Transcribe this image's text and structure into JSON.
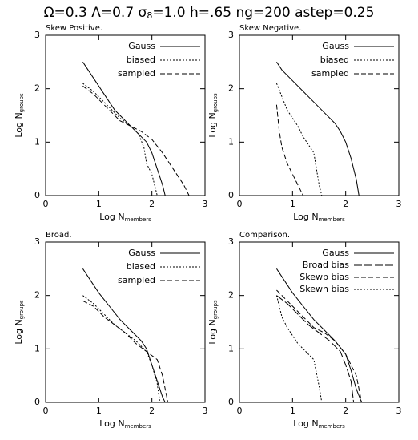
{
  "title": [
    "Ω=0.3 Λ=0.7 σ",
    "8",
    "=1.0 h=.65 ng=200 astep=0.25"
  ],
  "chart_data": [
    {
      "type": "line",
      "title": "Skew Positive.",
      "xlabel": "Log N",
      "xlabel_subscript": "members",
      "ylabel": "Log N",
      "ylabel_subscript": "groups",
      "xlim": [
        0,
        3
      ],
      "ylim": [
        0,
        3
      ],
      "xticks": [
        0,
        1,
        2,
        3
      ],
      "yticks": [
        0,
        1,
        2,
        3
      ],
      "legend": "upper right",
      "series": [
        {
          "name": "Gauss",
          "color": "#000000",
          "dash": "solid",
          "x": [
            0.7,
            0.8,
            0.9,
            1.0,
            1.1,
            1.2,
            1.3,
            1.4,
            1.5,
            1.6,
            1.7,
            1.8,
            1.9,
            2.0,
            2.1,
            2.2,
            2.25
          ],
          "values": [
            2.5,
            2.35,
            2.2,
            2.05,
            1.9,
            1.75,
            1.6,
            1.5,
            1.4,
            1.3,
            1.2,
            1.1,
            1.0,
            0.8,
            0.5,
            0.2,
            0
          ]
        },
        {
          "name": "biased",
          "color": "#000000",
          "dash": "dotted",
          "x": [
            0.7,
            0.9,
            1.0,
            1.2,
            1.4,
            1.6,
            1.75,
            1.85,
            1.9,
            2.0,
            2.05,
            2.1
          ],
          "values": [
            2.1,
            1.95,
            1.85,
            1.65,
            1.45,
            1.3,
            1.15,
            0.9,
            0.6,
            0.4,
            0.2,
            0
          ]
        },
        {
          "name": "sampled",
          "color": "#000000",
          "dash": "dashed",
          "x": [
            0.7,
            0.9,
            1.0,
            1.2,
            1.4,
            1.6,
            1.8,
            2.0,
            2.2,
            2.4,
            2.6,
            2.7
          ],
          "values": [
            2.05,
            1.9,
            1.8,
            1.6,
            1.4,
            1.3,
            1.2,
            1.05,
            0.8,
            0.5,
            0.2,
            0
          ]
        }
      ]
    },
    {
      "type": "line",
      "title": "Skew Negative.",
      "xlabel": "Log N",
      "xlabel_subscript": "members",
      "ylabel": "Log N",
      "ylabel_subscript": "groups",
      "xlim": [
        0,
        3
      ],
      "ylim": [
        0,
        3
      ],
      "xticks": [
        0,
        1,
        2,
        3
      ],
      "yticks": [
        0,
        1,
        2,
        3
      ],
      "legend": "upper right",
      "series": [
        {
          "name": "Gauss",
          "color": "#000000",
          "dash": "solid",
          "x": [
            0.7,
            0.8,
            1.0,
            1.2,
            1.4,
            1.6,
            1.8,
            1.9,
            2.0,
            2.1,
            2.2,
            2.25
          ],
          "values": [
            2.5,
            2.35,
            2.15,
            1.95,
            1.75,
            1.55,
            1.35,
            1.2,
            1.0,
            0.7,
            0.3,
            0
          ]
        },
        {
          "name": "biased",
          "color": "#000000",
          "dash": "dotted",
          "x": [
            0.7,
            0.8,
            0.9,
            1.0,
            1.1,
            1.2,
            1.3,
            1.4,
            1.45,
            1.5,
            1.55
          ],
          "values": [
            2.1,
            1.85,
            1.6,
            1.45,
            1.3,
            1.1,
            0.95,
            0.8,
            0.5,
            0.2,
            0
          ]
        },
        {
          "name": "sampled",
          "color": "#000000",
          "dash": "dashed",
          "x": [
            0.7,
            0.75,
            0.8,
            0.9,
            1.0,
            1.1,
            1.2
          ],
          "values": [
            1.7,
            1.2,
            0.9,
            0.6,
            0.4,
            0.2,
            0
          ]
        }
      ]
    },
    {
      "type": "line",
      "title": "Broad.",
      "xlabel": "Log N",
      "xlabel_subscript": "members",
      "ylabel": "Log N",
      "ylabel_subscript": "groups",
      "xlim": [
        0,
        3
      ],
      "ylim": [
        0,
        3
      ],
      "xticks": [
        0,
        1,
        2,
        3
      ],
      "yticks": [
        0,
        1,
        2,
        3
      ],
      "legend": "upper right",
      "series": [
        {
          "name": "Gauss",
          "color": "#000000",
          "dash": "solid",
          "x": [
            0.7,
            0.8,
            0.9,
            1.0,
            1.2,
            1.4,
            1.6,
            1.8,
            1.9,
            2.0,
            2.1,
            2.2,
            2.25
          ],
          "values": [
            2.5,
            2.35,
            2.2,
            2.05,
            1.8,
            1.55,
            1.35,
            1.15,
            1.0,
            0.7,
            0.4,
            0.1,
            0
          ]
        },
        {
          "name": "biased",
          "color": "#000000",
          "dash": "dotted",
          "x": [
            0.7,
            0.9,
            1.1,
            1.3,
            1.5,
            1.7,
            1.9,
            2.0,
            2.1,
            2.15
          ],
          "values": [
            2.0,
            1.85,
            1.65,
            1.45,
            1.3,
            1.15,
            0.95,
            0.7,
            0.35,
            0
          ]
        },
        {
          "name": "sampled",
          "color": "#000000",
          "dash": "dashed",
          "x": [
            0.7,
            0.9,
            1.1,
            1.3,
            1.5,
            1.7,
            1.9,
            2.1,
            2.2,
            2.3
          ],
          "values": [
            1.9,
            1.8,
            1.6,
            1.45,
            1.3,
            1.1,
            0.95,
            0.8,
            0.5,
            0
          ]
        }
      ]
    },
    {
      "type": "line",
      "title": "Comparison.",
      "xlabel": "Log N",
      "xlabel_subscript": "members",
      "ylabel": "Log N",
      "ylabel_subscript": "groups",
      "xlim": [
        0,
        3
      ],
      "ylim": [
        0,
        3
      ],
      "xticks": [
        0,
        1,
        2,
        3
      ],
      "yticks": [
        0,
        1,
        2,
        3
      ],
      "legend": "upper right",
      "series": [
        {
          "name": "Gauss",
          "color": "#000000",
          "dash": "solid",
          "x": [
            0.7,
            0.8,
            0.9,
            1.0,
            1.2,
            1.4,
            1.6,
            1.8,
            2.0,
            2.1,
            2.2,
            2.3
          ],
          "values": [
            2.5,
            2.35,
            2.2,
            2.05,
            1.8,
            1.55,
            1.35,
            1.15,
            0.9,
            0.6,
            0.25,
            0
          ]
        },
        {
          "name": "Broad bias",
          "color": "#000000",
          "dash": "long-dashed",
          "x": [
            0.7,
            0.9,
            1.1,
            1.3,
            1.5,
            1.7,
            1.9,
            2.0,
            2.1,
            2.15
          ],
          "values": [
            2.0,
            1.85,
            1.65,
            1.45,
            1.3,
            1.15,
            0.95,
            0.7,
            0.4,
            0
          ]
        },
        {
          "name": "Skewp bias",
          "color": "#000000",
          "dash": "dashed",
          "x": [
            0.7,
            0.9,
            1.0,
            1.2,
            1.4,
            1.6,
            1.8,
            2.0,
            2.2,
            2.3
          ],
          "values": [
            2.1,
            1.9,
            1.8,
            1.6,
            1.4,
            1.3,
            1.15,
            0.9,
            0.5,
            0
          ]
        },
        {
          "name": "Skewn bias",
          "color": "#000000",
          "dash": "dotted",
          "x": [
            0.7,
            0.8,
            0.9,
            1.0,
            1.1,
            1.2,
            1.3,
            1.4,
            1.5,
            1.55
          ],
          "values": [
            2.0,
            1.6,
            1.4,
            1.25,
            1.1,
            1.0,
            0.9,
            0.8,
            0.3,
            0
          ]
        }
      ]
    }
  ]
}
